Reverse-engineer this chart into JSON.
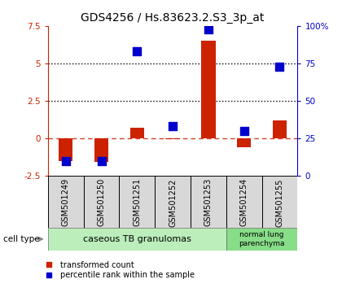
{
  "title": "GDS4256 / Hs.83623.2.S3_3p_at",
  "samples": [
    "GSM501249",
    "GSM501250",
    "GSM501251",
    "GSM501252",
    "GSM501253",
    "GSM501254",
    "GSM501255"
  ],
  "transformed_count": [
    -1.5,
    -1.6,
    0.7,
    -0.05,
    6.5,
    -0.6,
    1.2
  ],
  "percentile_rank": [
    10,
    10,
    83,
    33,
    98,
    30,
    73
  ],
  "ylim_left": [
    -2.5,
    7.5
  ],
  "ylim_right": [
    0,
    100
  ],
  "yticks_left": [
    -2.5,
    0,
    2.5,
    5,
    7.5
  ],
  "yticks_right": [
    0,
    25,
    50,
    75,
    100
  ],
  "hlines": [
    5.0,
    2.5
  ],
  "bar_color": "#cc2200",
  "dot_color": "#0000cc",
  "bar_width": 0.4,
  "dot_size": 45,
  "group1_color": "#bbeebb",
  "group2_color": "#88dd88",
  "group1_label": "caseous TB granulomas",
  "group2_label": "normal lung\nparenchyma",
  "group1_n": 5,
  "group2_n": 2,
  "legend_transformed": "transformed count",
  "legend_percentile": "percentile rank within the sample",
  "cell_type_label": "cell type",
  "bg_color": "#ffffff",
  "left_label_color": "#cc2200",
  "right_label_color": "#0000cc",
  "tick_label_fontsize": 7.5,
  "sample_fontsize": 7,
  "title_fontsize": 10,
  "legend_fontsize": 7
}
